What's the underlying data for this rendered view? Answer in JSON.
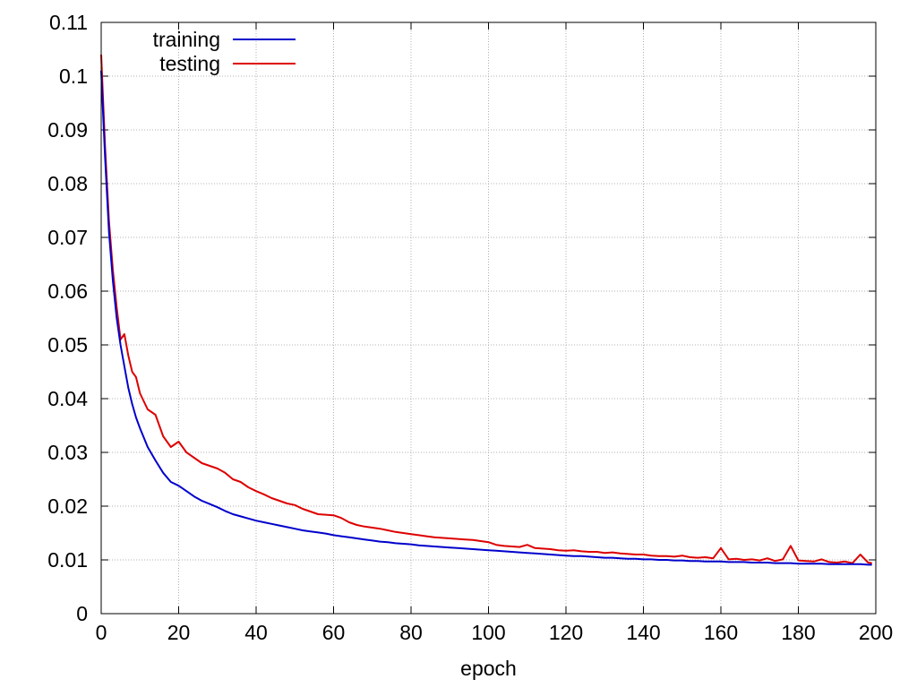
{
  "chart_data": {
    "type": "line",
    "title": "",
    "xlabel": "epoch",
    "ylabel": "",
    "xlim": [
      0,
      200
    ],
    "ylim": [
      0,
      0.11
    ],
    "xticks": [
      "0",
      "20",
      "40",
      "60",
      "80",
      "100",
      "120",
      "140",
      "160",
      "180",
      "200"
    ],
    "yticks": [
      "0",
      "0.01",
      "0.02",
      "0.03",
      "0.04",
      "0.05",
      "0.06",
      "0.07",
      "0.08",
      "0.09",
      "0.1",
      "0.11"
    ],
    "grid": true,
    "legend_position": "top-left",
    "x": [
      0,
      1,
      2,
      3,
      4,
      5,
      6,
      7,
      8,
      9,
      10,
      12,
      14,
      16,
      18,
      20,
      22,
      24,
      26,
      28,
      30,
      32,
      34,
      36,
      38,
      40,
      42,
      44,
      46,
      48,
      50,
      52,
      54,
      56,
      58,
      60,
      62,
      64,
      66,
      68,
      70,
      72,
      74,
      76,
      78,
      80,
      82,
      84,
      86,
      88,
      90,
      92,
      94,
      96,
      98,
      100,
      102,
      104,
      106,
      108,
      110,
      112,
      114,
      116,
      118,
      120,
      122,
      124,
      126,
      128,
      130,
      132,
      134,
      136,
      138,
      140,
      142,
      144,
      146,
      148,
      150,
      152,
      154,
      156,
      158,
      160,
      162,
      164,
      166,
      168,
      170,
      172,
      174,
      176,
      178,
      180,
      182,
      184,
      186,
      188,
      190,
      192,
      194,
      196,
      198,
      199
    ],
    "series": [
      {
        "name": "training",
        "color": "#0000cc",
        "values": [
          0.101,
          0.085,
          0.071,
          0.062,
          0.055,
          0.05,
          0.046,
          0.042,
          0.039,
          0.0365,
          0.0345,
          0.031,
          0.0285,
          0.0262,
          0.0245,
          0.0238,
          0.0228,
          0.0218,
          0.021,
          0.0204,
          0.0198,
          0.0191,
          0.0185,
          0.0181,
          0.0177,
          0.0173,
          0.017,
          0.0167,
          0.0164,
          0.0161,
          0.0158,
          0.0155,
          0.0153,
          0.0151,
          0.0149,
          0.0146,
          0.0144,
          0.0142,
          0.014,
          0.0138,
          0.0136,
          0.0134,
          0.0133,
          0.0131,
          0.013,
          0.0129,
          0.0127,
          0.0126,
          0.0125,
          0.0124,
          0.0123,
          0.0122,
          0.0121,
          0.012,
          0.0119,
          0.0118,
          0.0117,
          0.0116,
          0.0115,
          0.0114,
          0.0113,
          0.0112,
          0.0111,
          0.011,
          0.0109,
          0.0108,
          0.0107,
          0.0107,
          0.0106,
          0.0105,
          0.0104,
          0.0104,
          0.0103,
          0.0102,
          0.0102,
          0.0101,
          0.0101,
          0.01,
          0.01,
          0.0099,
          0.0099,
          0.0098,
          0.0098,
          0.0097,
          0.0097,
          0.0097,
          0.0096,
          0.0096,
          0.0096,
          0.0095,
          0.0095,
          0.0095,
          0.0094,
          0.0094,
          0.0094,
          0.0093,
          0.0093,
          0.0093,
          0.0093,
          0.0092,
          0.0092,
          0.0092,
          0.0092,
          0.0092,
          0.0091,
          0.0091
        ]
      },
      {
        "name": "testing",
        "color": "#dd0000",
        "values": [
          0.104,
          0.087,
          0.073,
          0.064,
          0.057,
          0.051,
          0.052,
          0.048,
          0.045,
          0.044,
          0.041,
          0.038,
          0.037,
          0.033,
          0.031,
          0.032,
          0.03,
          0.029,
          0.028,
          0.0275,
          0.027,
          0.0262,
          0.025,
          0.0245,
          0.0235,
          0.0228,
          0.0222,
          0.0215,
          0.021,
          0.0205,
          0.0202,
          0.0195,
          0.019,
          0.0185,
          0.0184,
          0.0183,
          0.0178,
          0.017,
          0.0165,
          0.0162,
          0.016,
          0.0158,
          0.0155,
          0.0152,
          0.015,
          0.0148,
          0.0146,
          0.0144,
          0.0142,
          0.0141,
          0.014,
          0.0139,
          0.0138,
          0.0137,
          0.0135,
          0.0133,
          0.0128,
          0.0126,
          0.0125,
          0.0124,
          0.0128,
          0.0122,
          0.0121,
          0.012,
          0.0118,
          0.0117,
          0.0118,
          0.0116,
          0.0115,
          0.0115,
          0.0113,
          0.0114,
          0.0112,
          0.0111,
          0.011,
          0.011,
          0.0108,
          0.0107,
          0.0107,
          0.0106,
          0.0108,
          0.0105,
          0.0104,
          0.0105,
          0.0103,
          0.0122,
          0.0101,
          0.0102,
          0.01,
          0.0101,
          0.0099,
          0.0103,
          0.0098,
          0.0101,
          0.0126,
          0.0099,
          0.0098,
          0.0097,
          0.0101,
          0.0096,
          0.0095,
          0.0097,
          0.0094,
          0.011,
          0.0095,
          0.0094
        ]
      }
    ]
  }
}
